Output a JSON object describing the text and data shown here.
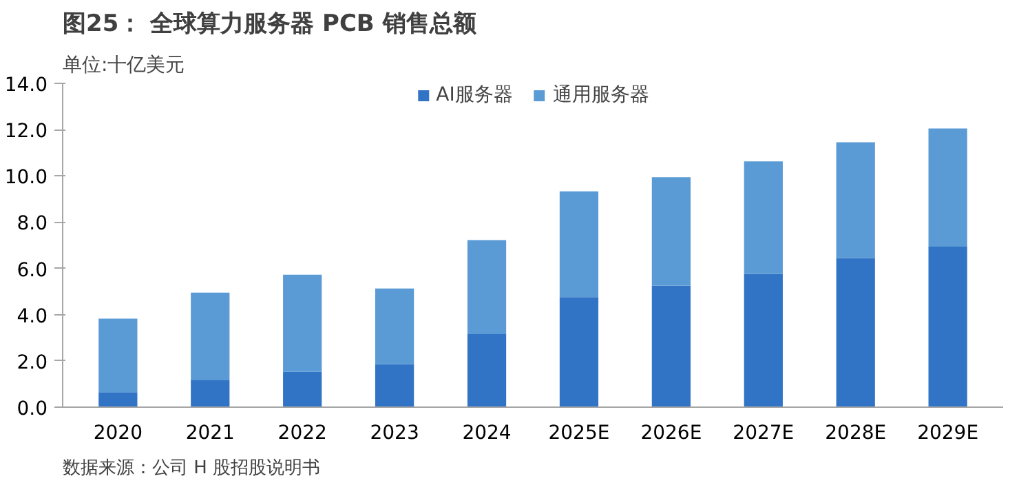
{
  "chart_data": {
    "type": "bar",
    "stacked": true,
    "title": "图25：   全球算力服务器 PCB 销售总额",
    "ylabel": "单位:十亿美元",
    "categories": [
      "2020",
      "2021",
      "2022",
      "2023",
      "2024",
      "2025E",
      "2026E",
      "2027E",
      "2028E",
      "2029E"
    ],
    "series": [
      {
        "name": "AI服务器",
        "color": "#3174c6",
        "values": [
          0.65,
          1.16,
          1.53,
          1.86,
          3.16,
          4.76,
          5.25,
          5.76,
          6.45,
          6.94
        ]
      },
      {
        "name": "通用服务器",
        "color": "#5b9bd5",
        "values": [
          3.18,
          3.79,
          4.2,
          3.27,
          4.06,
          4.57,
          4.69,
          4.87,
          5.0,
          5.11
        ]
      }
    ],
    "ylim": [
      0,
      14
    ],
    "yticks": [
      {
        "value": 0,
        "label": "0.0"
      },
      {
        "value": 2,
        "label": "2.0"
      },
      {
        "value": 4,
        "label": "4.0"
      },
      {
        "value": 6,
        "label": "6.0"
      },
      {
        "value": 8,
        "label": "8.0"
      },
      {
        "value": 10,
        "label": "10.0"
      },
      {
        "value": 12,
        "label": "12.0"
      },
      {
        "value": 14,
        "label": "14.0"
      }
    ],
    "legend": "top",
    "grid": false,
    "annotations": [
      "数据来源：公司 H 股招股说明书"
    ]
  }
}
